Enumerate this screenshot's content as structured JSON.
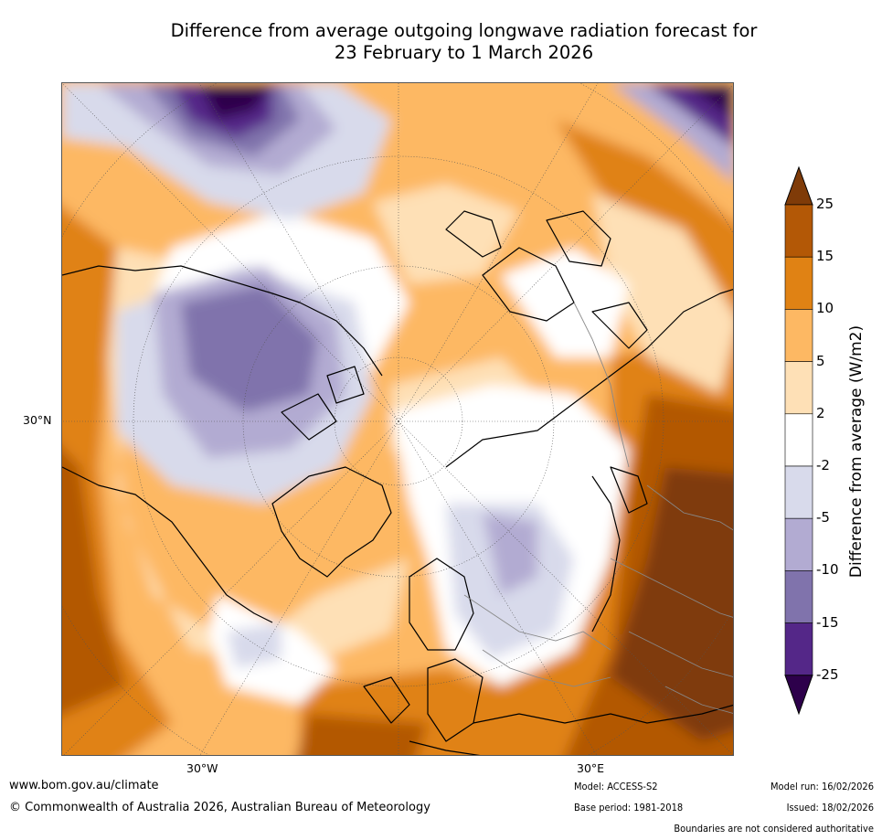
{
  "title": {
    "line1": "Difference from average outgoing longwave radiation forecast for",
    "line2": "23 February to 1 March 2026"
  },
  "map": {
    "projection": "north-polar-stereographic",
    "lat_label": "30°N",
    "lon_labels": [
      "30°W",
      "30°E"
    ],
    "anomaly_regions": [
      {
        "name": "north-pacific-deep-negative",
        "category": "<-25"
      },
      {
        "name": "north-america-negative",
        "category": "-15 to -10"
      },
      {
        "name": "north-atlantic-positive",
        "category": "5 to 10"
      },
      {
        "name": "europe-near-average",
        "category": "-2 to 2"
      },
      {
        "name": "russia-negative",
        "category": "-10 to -5"
      },
      {
        "name": "central-asia-strong-positive",
        "category": ">25"
      },
      {
        "name": "mediterranean-positive",
        "category": "15 to 25"
      }
    ]
  },
  "colorbar": {
    "label": "Difference from average (W/m2)",
    "ticks": [
      "25",
      "15",
      "10",
      "5",
      "2",
      "-2",
      "-5",
      "-10",
      "-15",
      "-25"
    ],
    "colors": [
      "#7f3b08",
      "#b35806",
      "#e08214",
      "#fdb863",
      "#fee0b6",
      "#ffffff",
      "#d8daeb",
      "#b2abd2",
      "#8073ac",
      "#542788",
      "#2d004b"
    ]
  },
  "footer": {
    "website": "www.bom.gov.au/climate",
    "copyright": "© Commonwealth of Australia 2026, Australian Bureau of Meteorology",
    "model": "Model: ACCESS-S2",
    "base_period": "Base period: 1981-2018",
    "model_run": "Model run: 16/02/2026",
    "issued": "Issued: 18/02/2026",
    "disclaimer": "Boundaries are not considered authoritative"
  }
}
